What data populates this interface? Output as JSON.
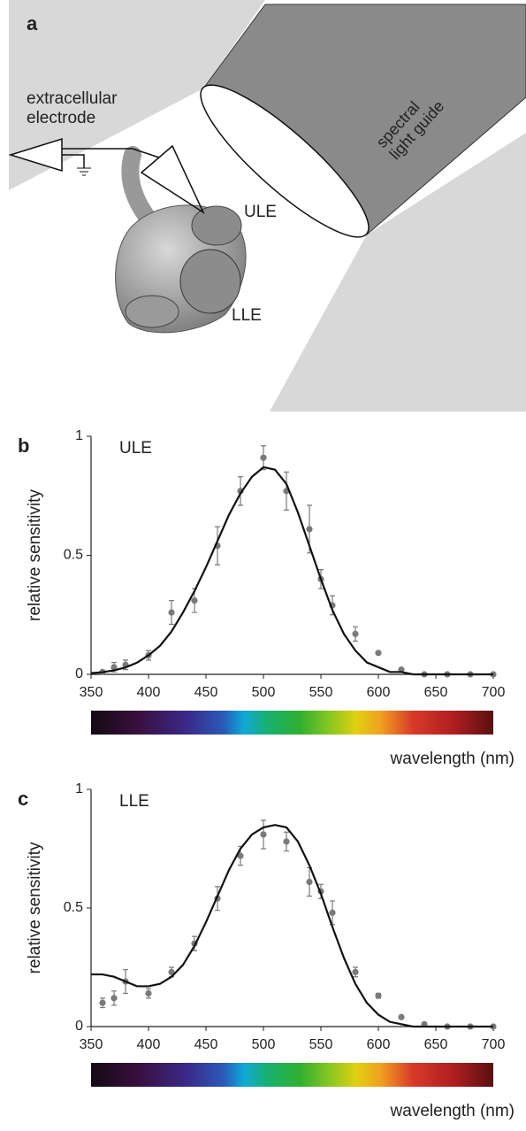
{
  "panel_a": {
    "label": "a",
    "electrode": [
      "extracellular",
      "electrode"
    ],
    "light_guide": [
      "spectral",
      "light guide"
    ],
    "upper": "ULE",
    "lower": "LLE"
  },
  "chart_data": [
    {
      "type": "scatter",
      "panel": "b",
      "annotation": "ULE",
      "ylabel": "relative sensitivity",
      "xlabel": "wavelength (nm)",
      "xlim": [
        350,
        700
      ],
      "ylim": [
        0,
        1
      ],
      "xticks": [
        350,
        400,
        450,
        500,
        550,
        600,
        650,
        700
      ],
      "yticks": [
        0,
        0.5,
        1
      ],
      "series": [
        {
          "color": "#7a7a7a",
          "x": [
            360,
            370,
            380,
            400,
            420,
            440,
            460,
            480,
            500,
            520,
            540,
            550,
            560,
            580,
            600,
            620,
            640,
            660,
            680,
            700
          ],
          "values": [
            0.01,
            0.03,
            0.04,
            0.08,
            0.26,
            0.31,
            0.54,
            0.77,
            0.91,
            0.77,
            0.61,
            0.4,
            0.29,
            0.17,
            0.09,
            0.02,
            0,
            0,
            0,
            0
          ],
          "errors": [
            0,
            0.02,
            0.02,
            0.02,
            0.05,
            0.05,
            0.08,
            0.06,
            0.05,
            0.08,
            0.1,
            0.04,
            0.04,
            0.03,
            0,
            0,
            0,
            0,
            0,
            0
          ]
        },
        {
          "color": "#111111",
          "x": [
            350,
            360,
            370,
            380,
            390,
            400,
            410,
            420,
            430,
            440,
            450,
            460,
            470,
            480,
            490,
            500,
            510,
            520,
            530,
            540,
            550,
            560,
            570,
            580,
            590,
            600,
            610,
            620,
            630,
            640,
            650,
            660,
            670,
            680,
            690,
            700
          ],
          "values": [
            0.005,
            0.009,
            0.017,
            0.029,
            0.049,
            0.08,
            0.12,
            0.18,
            0.26,
            0.35,
            0.45,
            0.56,
            0.67,
            0.76,
            0.83,
            0.87,
            0.86,
            0.8,
            0.68,
            0.54,
            0.4,
            0.27,
            0.17,
            0.1,
            0.05,
            0.03,
            0.01,
            0.01,
            0,
            0,
            0,
            0,
            0,
            0,
            0,
            0
          ]
        }
      ]
    },
    {
      "type": "scatter",
      "panel": "c",
      "annotation": "LLE",
      "ylabel": "relative sensitivity",
      "xlabel": "wavelength (nm)",
      "xlim": [
        350,
        700
      ],
      "ylim": [
        0,
        1
      ],
      "xticks": [
        350,
        400,
        450,
        500,
        550,
        600,
        650,
        700
      ],
      "yticks": [
        0,
        0.5,
        1
      ],
      "series": [
        {
          "color": "#7a7a7a",
          "x": [
            360,
            370,
            380,
            400,
            420,
            440,
            460,
            480,
            500,
            520,
            540,
            550,
            560,
            580,
            600,
            620,
            640,
            660,
            680,
            700
          ],
          "values": [
            0.1,
            0.12,
            0.19,
            0.14,
            0.23,
            0.35,
            0.54,
            0.72,
            0.81,
            0.78,
            0.61,
            0.57,
            0.48,
            0.23,
            0.13,
            0.04,
            0.01,
            0,
            0,
            0
          ],
          "errors": [
            0.02,
            0.03,
            0.05,
            0.02,
            0.02,
            0.03,
            0.05,
            0.04,
            0.06,
            0.04,
            0.06,
            0.03,
            0.05,
            0.02,
            0.01,
            0,
            0,
            0,
            0,
            0
          ]
        },
        {
          "color": "#111111",
          "x": [
            350,
            360,
            370,
            380,
            390,
            400,
            410,
            420,
            430,
            440,
            450,
            460,
            470,
            480,
            490,
            500,
            510,
            520,
            530,
            540,
            550,
            560,
            570,
            580,
            590,
            600,
            610,
            620,
            630,
            640,
            650,
            660,
            670,
            680,
            690,
            700
          ],
          "values": [
            0.22,
            0.22,
            0.21,
            0.19,
            0.17,
            0.17,
            0.18,
            0.21,
            0.26,
            0.34,
            0.44,
            0.55,
            0.66,
            0.75,
            0.81,
            0.84,
            0.85,
            0.84,
            0.78,
            0.68,
            0.56,
            0.42,
            0.29,
            0.18,
            0.1,
            0.05,
            0.02,
            0.01,
            0,
            0,
            0,
            0,
            0,
            0,
            0,
            0
          ]
        }
      ]
    }
  ]
}
